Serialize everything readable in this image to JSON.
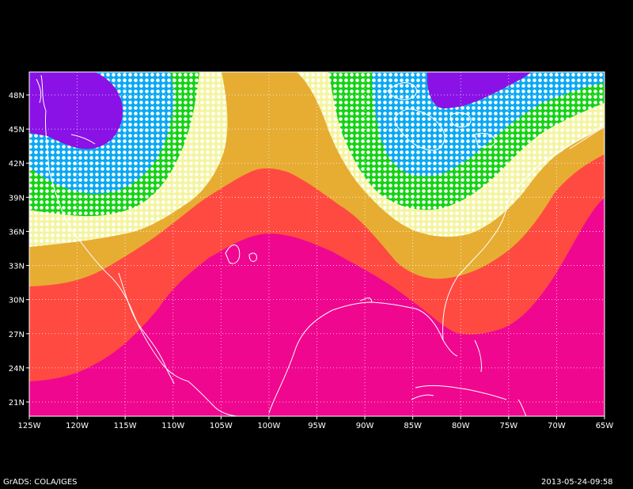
{
  "map": {
    "colors": {
      "background": "#000000",
      "violet": "#8a12e6",
      "sky_blue": "#09a8f3",
      "green": "#14d214",
      "pale_yellow": "#f4f4a0",
      "gold": "#e6ad32",
      "coral_red": "#ff4a42",
      "magenta": "#f0078f",
      "coast": "#ffffff",
      "grid": "#ffffff"
    },
    "longitude_labels": [
      "125W",
      "120W",
      "115W",
      "110W",
      "105W",
      "100W",
      "95W",
      "90W",
      "85W",
      "80W",
      "75W",
      "70W",
      "65W"
    ],
    "latitude_labels": [
      "48N",
      "45N",
      "42N",
      "39N",
      "36N",
      "33N",
      "30N",
      "27N",
      "24N",
      "21N"
    ],
    "grid": "dotted",
    "stipple": "white dots over the pale-yellow, green and sky-blue bands"
  },
  "footer": {
    "left": "GrADS: COLA/IGES",
    "right": "2013-05-24-09:58"
  }
}
